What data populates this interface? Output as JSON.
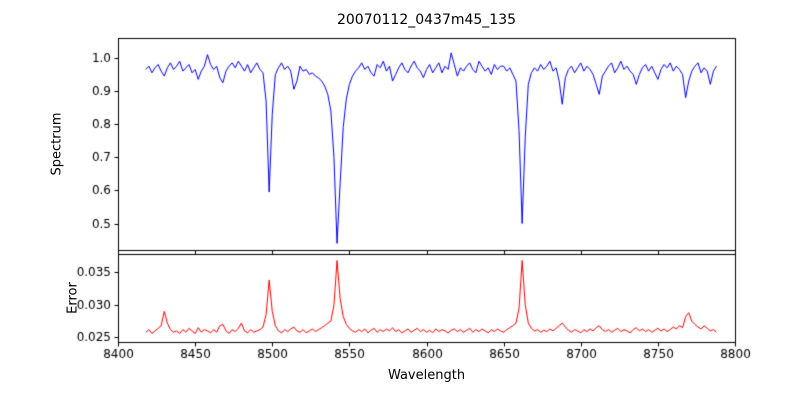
{
  "figure": {
    "title": "20070112_0437m45_135",
    "xlabel": "Wavelength",
    "background": "#ffffff"
  },
  "chart_data": [
    {
      "type": "line",
      "name": "spectrum",
      "title": "20070112_0437m45_135",
      "ylabel": "Spectrum",
      "color": "#0000ff",
      "xlim": [
        8400,
        8800
      ],
      "ylim": [
        0.42,
        1.06
      ],
      "yticks": [
        0.5,
        0.6,
        0.7,
        0.8,
        0.9,
        1.0
      ],
      "yticklabels": [
        "0.5",
        "0.6",
        "0.7",
        "0.8",
        "0.9",
        "1.0"
      ],
      "xticks": [
        8400,
        8450,
        8500,
        8550,
        8600,
        8650,
        8700,
        8750,
        8800
      ],
      "xticklabels": [
        "8400",
        "8450",
        "8500",
        "8550",
        "8600",
        "8650",
        "8700",
        "8750",
        "8800"
      ],
      "grid": false,
      "x_start": 8418,
      "x_step": 2,
      "values": [
        0.965,
        0.975,
        0.955,
        0.97,
        0.98,
        0.96,
        0.945,
        0.97,
        0.985,
        0.965,
        0.975,
        0.99,
        0.96,
        0.97,
        0.98,
        0.955,
        0.965,
        0.935,
        0.96,
        0.975,
        1.01,
        0.98,
        0.965,
        0.975,
        0.94,
        0.925,
        0.96,
        0.975,
        0.985,
        0.97,
        0.99,
        0.975,
        0.96,
        0.98,
        0.955,
        0.97,
        0.985,
        0.965,
        0.955,
        0.87,
        0.595,
        0.83,
        0.95,
        0.97,
        0.985,
        0.965,
        0.975,
        0.96,
        0.905,
        0.93,
        0.975,
        0.96,
        0.965,
        0.95,
        0.955,
        0.945,
        0.94,
        0.93,
        0.915,
        0.89,
        0.84,
        0.7,
        0.44,
        0.62,
        0.79,
        0.875,
        0.92,
        0.945,
        0.96,
        0.97,
        0.985,
        0.965,
        0.975,
        0.955,
        0.945,
        0.98,
        0.97,
        0.99,
        0.96,
        0.975,
        0.93,
        0.95,
        0.97,
        0.985,
        0.965,
        0.955,
        0.975,
        0.99,
        0.97,
        0.96,
        0.94,
        0.965,
        0.98,
        0.955,
        0.97,
        0.985,
        0.955,
        0.975,
        0.965,
        1.015,
        0.98,
        0.945,
        0.97,
        0.96,
        0.975,
        0.985,
        0.965,
        0.955,
        0.99,
        0.975,
        0.96,
        0.97,
        0.95,
        0.98,
        0.965,
        0.975,
        0.975,
        0.96,
        0.97,
        0.95,
        0.93,
        0.78,
        0.5,
        0.76,
        0.92,
        0.955,
        0.97,
        0.96,
        0.98,
        0.965,
        0.975,
        0.99,
        0.96,
        0.97,
        0.93,
        0.86,
        0.94,
        0.965,
        0.975,
        0.955,
        0.97,
        0.985,
        0.96,
        0.975,
        0.965,
        0.95,
        0.92,
        0.89,
        0.945,
        0.96,
        0.975,
        0.985,
        0.955,
        0.97,
        0.99,
        0.965,
        0.975,
        0.96,
        0.95,
        0.92,
        0.95,
        0.97,
        0.98,
        0.96,
        0.975,
        0.955,
        0.935,
        0.965,
        0.98,
        0.97,
        0.985,
        0.96,
        0.975,
        0.965,
        0.95,
        0.88,
        0.93,
        0.96,
        0.975,
        0.985,
        0.955,
        0.97,
        0.96,
        0.92,
        0.96,
        0.975
      ]
    },
    {
      "type": "line",
      "name": "error",
      "ylabel": "Error",
      "color": "#ff0000",
      "xlim": [
        8400,
        8800
      ],
      "ylim": [
        0.0243,
        0.0378
      ],
      "yticks": [
        0.025,
        0.03,
        0.035
      ],
      "yticklabels": [
        "0.025",
        "0.030",
        "0.035"
      ],
      "xticks": [
        8400,
        8450,
        8500,
        8550,
        8600,
        8650,
        8700,
        8750,
        8800
      ],
      "xticklabels": [
        "8400",
        "8450",
        "8500",
        "8550",
        "8600",
        "8650",
        "8700",
        "8750",
        "8800"
      ],
      "grid": false,
      "x_start": 8418,
      "x_step": 2,
      "values": [
        0.0258,
        0.0262,
        0.0256,
        0.026,
        0.0264,
        0.0268,
        0.029,
        0.0272,
        0.0262,
        0.0258,
        0.026,
        0.0256,
        0.0262,
        0.0258,
        0.0264,
        0.026,
        0.0256,
        0.0265,
        0.0258,
        0.0262,
        0.026,
        0.0257,
        0.0262,
        0.0258,
        0.0268,
        0.027,
        0.026,
        0.0256,
        0.0262,
        0.0259,
        0.0264,
        0.0272,
        0.026,
        0.0257,
        0.0262,
        0.0258,
        0.026,
        0.0262,
        0.0266,
        0.0285,
        0.0338,
        0.029,
        0.0268,
        0.026,
        0.0257,
        0.0262,
        0.0259,
        0.0263,
        0.0266,
        0.026,
        0.0258,
        0.0262,
        0.0257,
        0.026,
        0.0263,
        0.0259,
        0.0262,
        0.0265,
        0.0268,
        0.0272,
        0.0275,
        0.03,
        0.0368,
        0.031,
        0.0282,
        0.027,
        0.0264,
        0.026,
        0.0258,
        0.0262,
        0.0259,
        0.0263,
        0.0257,
        0.0261,
        0.0264,
        0.0258,
        0.0262,
        0.0259,
        0.0263,
        0.026,
        0.0265,
        0.0259,
        0.0262,
        0.0257,
        0.026,
        0.0263,
        0.0258,
        0.0261,
        0.0264,
        0.0259,
        0.0262,
        0.0258,
        0.0261,
        0.0257,
        0.0263,
        0.0259,
        0.0262,
        0.026,
        0.0257,
        0.0261,
        0.0263,
        0.0259,
        0.0262,
        0.0258,
        0.0261,
        0.0264,
        0.0258,
        0.0262,
        0.0259,
        0.0263,
        0.026,
        0.0257,
        0.0262,
        0.0259,
        0.0263,
        0.026,
        0.0258,
        0.0262,
        0.0265,
        0.0268,
        0.0272,
        0.0295,
        0.0368,
        0.03,
        0.0272,
        0.0264,
        0.026,
        0.0262,
        0.0258,
        0.0261,
        0.0259,
        0.0263,
        0.026,
        0.0264,
        0.0268,
        0.0272,
        0.0266,
        0.0261,
        0.0258,
        0.0262,
        0.026,
        0.0257,
        0.0262,
        0.0259,
        0.0263,
        0.026,
        0.0265,
        0.0268,
        0.0262,
        0.0259,
        0.0262,
        0.0258,
        0.0261,
        0.0264,
        0.0259,
        0.0262,
        0.026,
        0.0257,
        0.0262,
        0.0265,
        0.026,
        0.0263,
        0.0259,
        0.0262,
        0.0258,
        0.0261,
        0.0264,
        0.026,
        0.0263,
        0.0259,
        0.0262,
        0.0266,
        0.0263,
        0.0268,
        0.0265,
        0.0282,
        0.0288,
        0.0275,
        0.027,
        0.0266,
        0.0263,
        0.0268,
        0.0264,
        0.026,
        0.0262,
        0.0258
      ]
    }
  ]
}
